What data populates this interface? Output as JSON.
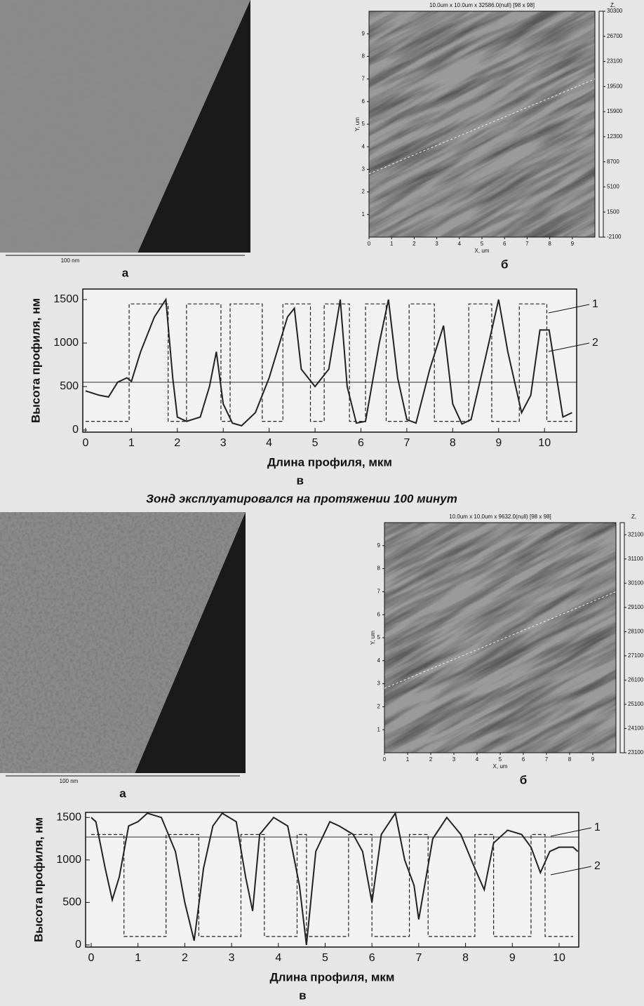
{
  "figure1": {
    "image_a": {
      "scale_label": "100 nm",
      "label": "а"
    },
    "image_b": {
      "header": "10.0um x 10.0um x 32586.0(null) [98 x 98]",
      "x_label": "X, um",
      "y_label": "Y, um",
      "z_label": "Z,",
      "xlim": [
        0,
        10
      ],
      "ylim": [
        0,
        10
      ],
      "xticks": [
        0,
        1,
        2,
        3,
        4,
        5,
        6,
        7,
        8,
        9
      ],
      "yticks": [
        1,
        2,
        3,
        4,
        5,
        6,
        7,
        8,
        9
      ],
      "zlim": [
        -2100,
        30300
      ],
      "zticks": [
        30300,
        26700,
        23100,
        19500,
        15900,
        12300,
        8700,
        5100,
        1500,
        -2100
      ],
      "label": "б"
    },
    "profile": {
      "type": "line",
      "x_label": "Длина профиля, мкм",
      "y_label": "Высота профиля, нм",
      "label": "в",
      "xlim": [
        -0.06,
        10.7
      ],
      "ylim": [
        -24,
        1621
      ],
      "xticks": [
        0,
        1,
        2,
        3,
        4,
        5,
        6,
        7,
        8,
        9,
        10
      ],
      "yticks": [
        0,
        500,
        1000,
        1500
      ],
      "level": 550,
      "series": [
        {
          "name": "1",
          "color": "#222",
          "x": [
            0,
            0.3,
            0.5,
            0.7,
            0.9,
            1.0,
            1.2,
            1.5,
            1.75,
            1.9,
            2.0,
            2.2,
            2.5,
            2.7,
            2.85,
            3.0,
            3.2,
            3.4,
            3.7,
            4.0,
            4.4,
            4.55,
            4.7,
            5.0,
            5.3,
            5.55,
            5.7,
            5.9,
            6.1,
            6.4,
            6.6,
            6.8,
            7.0,
            7.2,
            7.5,
            7.8,
            8.0,
            8.2,
            8.4,
            8.7,
            9.0,
            9.2,
            9.5,
            9.7,
            9.9,
            10.1,
            10.4,
            10.6
          ],
          "values": [
            450,
            400,
            380,
            550,
            600,
            560,
            900,
            1300,
            1500,
            600,
            150,
            100,
            150,
            500,
            900,
            300,
            80,
            50,
            200,
            600,
            1300,
            1400,
            700,
            500,
            700,
            1500,
            500,
            80,
            100,
            1000,
            1500,
            600,
            120,
            80,
            700,
            1200,
            300,
            70,
            120,
            800,
            1500,
            900,
            200,
            400,
            1150,
            1150,
            150,
            200
          ]
        },
        {
          "name": "2",
          "color": "#222",
          "x": [
            0,
            0.95,
            0.95,
            1.8,
            1.8,
            2.2,
            2.2,
            2.95,
            2.95,
            3.15,
            3.15,
            3.85,
            3.85,
            4.3,
            4.3,
            4.9,
            4.9,
            5.2,
            5.2,
            5.75,
            5.75,
            6.1,
            6.1,
            6.55,
            6.55,
            7.05,
            7.05,
            7.6,
            7.6,
            8.35,
            8.35,
            8.85,
            8.85,
            9.45,
            9.45,
            10.05,
            10.05,
            10.6
          ],
          "values": [
            100,
            100,
            1450,
            1450,
            100,
            100,
            1450,
            1450,
            100,
            100,
            1450,
            1450,
            100,
            100,
            1450,
            1450,
            100,
            100,
            1450,
            1450,
            100,
            100,
            1450,
            1450,
            100,
            100,
            1450,
            1450,
            100,
            100,
            1450,
            1450,
            100,
            100,
            1450,
            1450,
            100,
            100
          ]
        }
      ]
    }
  },
  "caption": "Зонд эксплуатировался на протяжении 100 минут",
  "figure2": {
    "image_a": {
      "scale_label": "100 nm",
      "label": "а"
    },
    "image_b": {
      "header": "10.0um x 10.0um x 9632.0(null) [98 x 98]",
      "x_label": "X, um",
      "y_label": "Y, um",
      "z_label": "Z,",
      "xlim": [
        0,
        10
      ],
      "ylim": [
        0,
        10
      ],
      "xticks": [
        0,
        1,
        2,
        3,
        4,
        5,
        6,
        7,
        8,
        9
      ],
      "yticks": [
        1,
        2,
        3,
        4,
        5,
        6,
        7,
        8,
        9
      ],
      "zlim": [
        23100,
        32600
      ],
      "zticks": [
        32100,
        31100,
        30100,
        29100,
        28100,
        27100,
        26100,
        25100,
        24100,
        23100
      ],
      "label": "б"
    },
    "profile": {
      "type": "line",
      "x_label": "Длина профиля, мкм",
      "y_label": "Высота профиля, нм",
      "label": "в",
      "xlim": [
        -0.12,
        10.42
      ],
      "ylim": [
        -25,
        1560
      ],
      "xticks": [
        0,
        1,
        2,
        3,
        4,
        5,
        6,
        7,
        8,
        9,
        10
      ],
      "yticks": [
        0,
        500,
        1000,
        1500
      ],
      "level": 1270,
      "series": [
        {
          "name": "1",
          "color": "#222",
          "x": [
            0,
            0.1,
            0.3,
            0.45,
            0.6,
            0.8,
            1.0,
            1.2,
            1.5,
            1.8,
            2.0,
            2.2,
            2.4,
            2.6,
            2.8,
            3.1,
            3.3,
            3.45,
            3.6,
            3.9,
            4.2,
            4.45,
            4.6,
            4.8,
            5.1,
            5.3,
            5.6,
            5.8,
            6.0,
            6.2,
            6.5,
            6.7,
            6.9,
            7.0,
            7.3,
            7.6,
            7.9,
            8.2,
            8.4,
            8.6,
            8.9,
            9.2,
            9.4,
            9.6,
            9.8,
            10.0,
            10.3,
            10.4
          ],
          "values": [
            1500,
            1450,
            900,
            530,
            800,
            1400,
            1450,
            1550,
            1500,
            1100,
            500,
            50,
            900,
            1400,
            1550,
            1450,
            800,
            400,
            1300,
            1500,
            1400,
            700,
            0,
            1100,
            1450,
            1400,
            1300,
            1100,
            500,
            1300,
            1550,
            1000,
            700,
            300,
            1250,
            1500,
            1300,
            900,
            650,
            1200,
            1350,
            1300,
            1150,
            850,
            1100,
            1150,
            1150,
            1100
          ]
        },
        {
          "name": "2",
          "color": "#222",
          "x": [
            0,
            0.7,
            0.7,
            1.6,
            1.6,
            2.3,
            2.3,
            3.2,
            3.2,
            3.7,
            3.7,
            4.4,
            4.4,
            4.6,
            4.6,
            5.5,
            5.5,
            6.0,
            6.0,
            6.8,
            6.8,
            7.2,
            7.2,
            8.2,
            8.2,
            8.6,
            8.6,
            9.4,
            9.4,
            9.7,
            9.7,
            10.3
          ],
          "values": [
            1300,
            1300,
            100,
            100,
            1300,
            1300,
            100,
            100,
            1300,
            1300,
            100,
            100,
            1300,
            1300,
            100,
            100,
            1300,
            1300,
            100,
            100,
            1300,
            1300,
            100,
            100,
            1300,
            1300,
            100,
            100,
            1300,
            1300,
            100,
            100
          ]
        }
      ]
    }
  }
}
